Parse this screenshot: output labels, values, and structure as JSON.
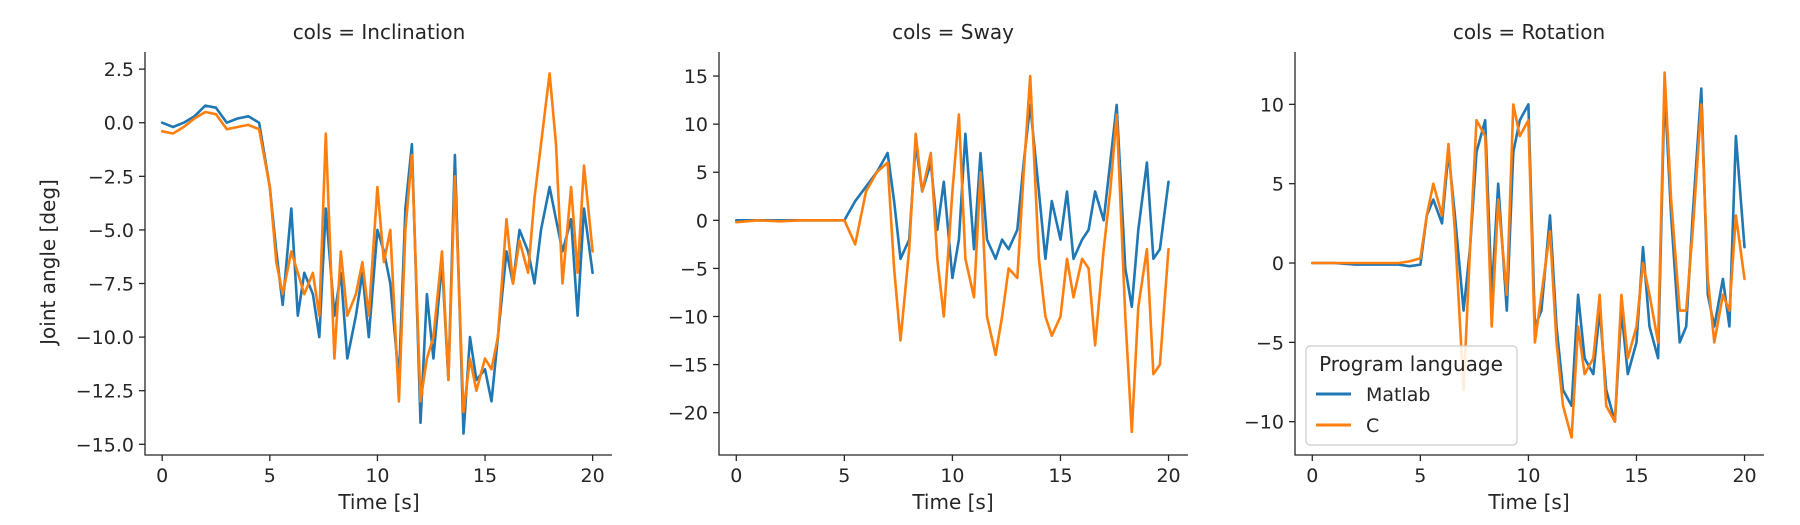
{
  "figure": {
    "shared_xlabel": "Time [s]",
    "shared_ylabel": "Joint angle [deg]",
    "legend": {
      "title": "Program language",
      "placement": "lower-left of third panel",
      "entries": [
        {
          "name": "Matlab",
          "color": "#1f77b4"
        },
        {
          "name": "C",
          "color": "#ff7f0e"
        }
      ]
    }
  },
  "chart_data": [
    {
      "type": "line",
      "title": "cols = Inclination",
      "xlabel": "Time [s]",
      "ylabel": "Joint angle [deg]",
      "xlim": [
        -0.8,
        20.9
      ],
      "ylim": [
        -15.5,
        3.3
      ],
      "xticks": [
        0,
        5,
        10,
        15,
        20
      ],
      "yticks": [
        2.5,
        0.0,
        -2.5,
        -5.0,
        -7.5,
        -10.0,
        -12.5,
        -15.0
      ],
      "ytick_labels": [
        "2.5",
        "0.0",
        "−2.5",
        "−5.0",
        "−7.5",
        "−10.0",
        "−12.5",
        "−15.0"
      ],
      "series": [
        {
          "name": "Matlab",
          "color": "#1f77b4",
          "x": [
            0,
            0.5,
            1,
            1.5,
            2,
            2.5,
            3,
            3.5,
            4,
            4.5,
            5,
            5.3,
            5.6,
            6,
            6.3,
            6.6,
            7,
            7.3,
            7.6,
            8,
            8.3,
            8.6,
            9,
            9.3,
            9.6,
            10,
            10.3,
            10.6,
            11,
            11.3,
            11.6,
            12,
            12.3,
            12.6,
            13,
            13.3,
            13.6,
            14,
            14.3,
            14.6,
            15,
            15.3,
            15.6,
            16,
            16.3,
            16.6,
            17,
            17.3,
            17.6,
            18,
            18.3,
            18.6,
            19,
            19.3,
            19.6,
            20
          ],
          "y": [
            0,
            -0.2,
            0,
            0.3,
            0.8,
            0.7,
            0,
            0.2,
            0.3,
            0,
            -3,
            -6,
            -8.5,
            -4,
            -9,
            -7,
            -8,
            -10,
            -4,
            -9,
            -7,
            -11,
            -9,
            -7,
            -10,
            -5,
            -6,
            -7.5,
            -12,
            -4,
            -1,
            -14,
            -8,
            -11,
            -6.5,
            -12,
            -1.5,
            -14.5,
            -10,
            -12,
            -11.5,
            -13,
            -10,
            -6,
            -7.5,
            -5,
            -6,
            -7.5,
            -5,
            -3,
            -4.5,
            -6,
            -4.5,
            -9,
            -4,
            -7
          ]
        },
        {
          "name": "C",
          "color": "#ff7f0e",
          "x": [
            0,
            0.5,
            1,
            1.5,
            2,
            2.5,
            3,
            3.5,
            4,
            4.5,
            5,
            5.3,
            5.6,
            6,
            6.3,
            6.6,
            7,
            7.3,
            7.6,
            8,
            8.3,
            8.6,
            9,
            9.3,
            9.6,
            10,
            10.3,
            10.6,
            11,
            11.3,
            11.6,
            12,
            12.3,
            12.6,
            13,
            13.3,
            13.6,
            14,
            14.3,
            14.6,
            15,
            15.3,
            15.6,
            16,
            16.3,
            16.6,
            17,
            17.3,
            17.6,
            18,
            18.3,
            18.6,
            19,
            19.3,
            19.6,
            20
          ],
          "y": [
            -0.4,
            -0.5,
            -0.2,
            0.2,
            0.5,
            0.4,
            -0.3,
            -0.2,
            -0.1,
            -0.3,
            -3,
            -6.5,
            -8,
            -6,
            -7,
            -8,
            -7,
            -9,
            -0.5,
            -11,
            -6,
            -9,
            -8,
            -6.5,
            -9,
            -3,
            -6.5,
            -5,
            -13,
            -5,
            -1.5,
            -13,
            -11,
            -10,
            -6,
            -12,
            -2.5,
            -13.5,
            -11,
            -12.5,
            -11,
            -11.5,
            -10,
            -4.5,
            -7.5,
            -5.5,
            -7,
            -3.5,
            -1,
            2.3,
            -1,
            -7.5,
            -3,
            -7,
            -2,
            -6
          ]
        }
      ]
    },
    {
      "type": "line",
      "title": "cols = Sway",
      "xlabel": "Time [s]",
      "ylabel": "",
      "xlim": [
        -0.8,
        20.9
      ],
      "ylim": [
        -24.4,
        17.5
      ],
      "xticks": [
        0,
        5,
        10,
        15,
        20
      ],
      "yticks": [
        15,
        10,
        5,
        0,
        -5,
        -10,
        -15,
        -20
      ],
      "ytick_labels": [
        "15",
        "10",
        "5",
        "0",
        "−5",
        "−10",
        "−15",
        "−20"
      ],
      "series": [
        {
          "name": "Matlab",
          "color": "#1f77b4",
          "x": [
            0,
            1,
            2,
            3,
            4,
            4.5,
            5,
            5.5,
            6,
            6.5,
            7,
            7.3,
            7.6,
            8,
            8.3,
            8.6,
            9,
            9.3,
            9.6,
            10,
            10.3,
            10.6,
            11,
            11.3,
            11.6,
            12,
            12.3,
            12.6,
            13,
            13.3,
            13.6,
            14,
            14.3,
            14.6,
            15,
            15.3,
            15.6,
            16,
            16.3,
            16.6,
            17,
            17.3,
            17.6,
            18,
            18.3,
            18.6,
            19,
            19.3,
            19.6,
            20
          ],
          "y": [
            0,
            0,
            0,
            0,
            0,
            0,
            0,
            2,
            3.5,
            5,
            7,
            2,
            -4,
            -2,
            8,
            3,
            6,
            -1,
            4,
            -6,
            -2,
            9,
            -3,
            7,
            -2,
            -4,
            -2,
            -3,
            -1,
            6,
            12,
            3,
            -4,
            2,
            -2,
            3,
            -4,
            -2,
            -1,
            3,
            0,
            6,
            12,
            -5,
            -9,
            -1,
            6,
            -4,
            -3,
            4
          ]
        },
        {
          "name": "C",
          "color": "#ff7f0e",
          "x": [
            0,
            1,
            2,
            3,
            4,
            4.5,
            5,
            5.5,
            6,
            6.5,
            7,
            7.3,
            7.6,
            8,
            8.3,
            8.6,
            9,
            9.3,
            9.6,
            10,
            10.3,
            10.6,
            11,
            11.3,
            11.6,
            12,
            12.3,
            12.6,
            13,
            13.3,
            13.6,
            14,
            14.3,
            14.6,
            15,
            15.3,
            15.6,
            16,
            16.3,
            16.6,
            17,
            17.3,
            17.6,
            18,
            18.3,
            18.6,
            19,
            19.3,
            19.6,
            20
          ],
          "y": [
            -0.2,
            0,
            -0.1,
            0,
            0,
            0,
            0,
            -2.5,
            3,
            5,
            6,
            -5,
            -12.5,
            -3,
            9,
            3,
            7,
            -4,
            -10,
            3,
            11,
            -4,
            -8,
            5,
            -10,
            -14,
            -10,
            -5,
            -6,
            5,
            15,
            -4,
            -10,
            -12,
            -10,
            -4,
            -8,
            -4,
            -5,
            -13,
            -3,
            3,
            11,
            -10,
            -22,
            -9,
            -3,
            -16,
            -15,
            -3
          ]
        }
      ]
    },
    {
      "type": "line",
      "title": "cols = Rotation",
      "xlabel": "Time [s]",
      "ylabel": "",
      "xlim": [
        -0.8,
        20.9
      ],
      "ylim": [
        -12.1,
        13.3
      ],
      "xticks": [
        0,
        5,
        10,
        15,
        20
      ],
      "yticks": [
        10,
        5,
        0,
        -5,
        -10
      ],
      "ytick_labels": [
        "10",
        "5",
        "0",
        "−5",
        "−10"
      ],
      "series": [
        {
          "name": "Matlab",
          "color": "#1f77b4",
          "x": [
            0,
            1,
            2,
            3,
            4,
            4.5,
            5,
            5.3,
            5.6,
            6,
            6.3,
            6.6,
            7,
            7.3,
            7.6,
            8,
            8.3,
            8.6,
            9,
            9.3,
            9.6,
            10,
            10.3,
            10.6,
            11,
            11.3,
            11.6,
            12,
            12.3,
            12.6,
            13,
            13.3,
            13.6,
            14,
            14.3,
            14.6,
            15,
            15.3,
            15.6,
            16,
            16.3,
            16.6,
            17,
            17.3,
            17.6,
            18,
            18.3,
            18.6,
            19,
            19.3,
            19.6,
            20
          ],
          "y": [
            0,
            0,
            -0.1,
            -0.1,
            -0.1,
            -0.2,
            -0.1,
            3,
            4,
            2.5,
            7,
            3,
            -3,
            1,
            7,
            9,
            -2,
            5,
            -3,
            7,
            9,
            10,
            -4,
            -3,
            3,
            -4,
            -8,
            -9,
            -2,
            -6,
            -7,
            -3,
            -8,
            -10,
            -3,
            -7,
            -5,
            1,
            -4,
            -6,
            11,
            3,
            -5,
            -4,
            3,
            11,
            -2,
            -4,
            -1,
            -4,
            8,
            1
          ]
        },
        {
          "name": "C",
          "color": "#ff7f0e",
          "x": [
            0,
            1,
            2,
            3,
            4,
            4.5,
            5,
            5.3,
            5.6,
            6,
            6.3,
            6.6,
            7,
            7.3,
            7.6,
            8,
            8.3,
            8.6,
            9,
            9.3,
            9.6,
            10,
            10.3,
            10.6,
            11,
            11.3,
            11.6,
            12,
            12.3,
            12.6,
            13,
            13.3,
            13.6,
            14,
            14.3,
            14.6,
            15,
            15.3,
            15.6,
            16,
            16.3,
            16.6,
            17,
            17.3,
            17.6,
            18,
            18.3,
            18.6,
            19,
            19.3,
            19.6,
            20
          ],
          "y": [
            0,
            0,
            0,
            0,
            0,
            0.1,
            0.3,
            3,
            5,
            3,
            7.5,
            2,
            -8,
            1,
            9,
            8,
            -4,
            4,
            -2,
            10,
            8,
            9,
            -5,
            -2,
            2,
            -5,
            -9,
            -11,
            -4,
            -7,
            -6,
            -2,
            -9,
            -10,
            -2,
            -6,
            -4,
            0,
            -2,
            -5,
            12,
            4,
            -3,
            -3,
            2,
            10,
            -1,
            -5,
            -2,
            -3,
            3,
            -1
          ]
        }
      ]
    }
  ]
}
